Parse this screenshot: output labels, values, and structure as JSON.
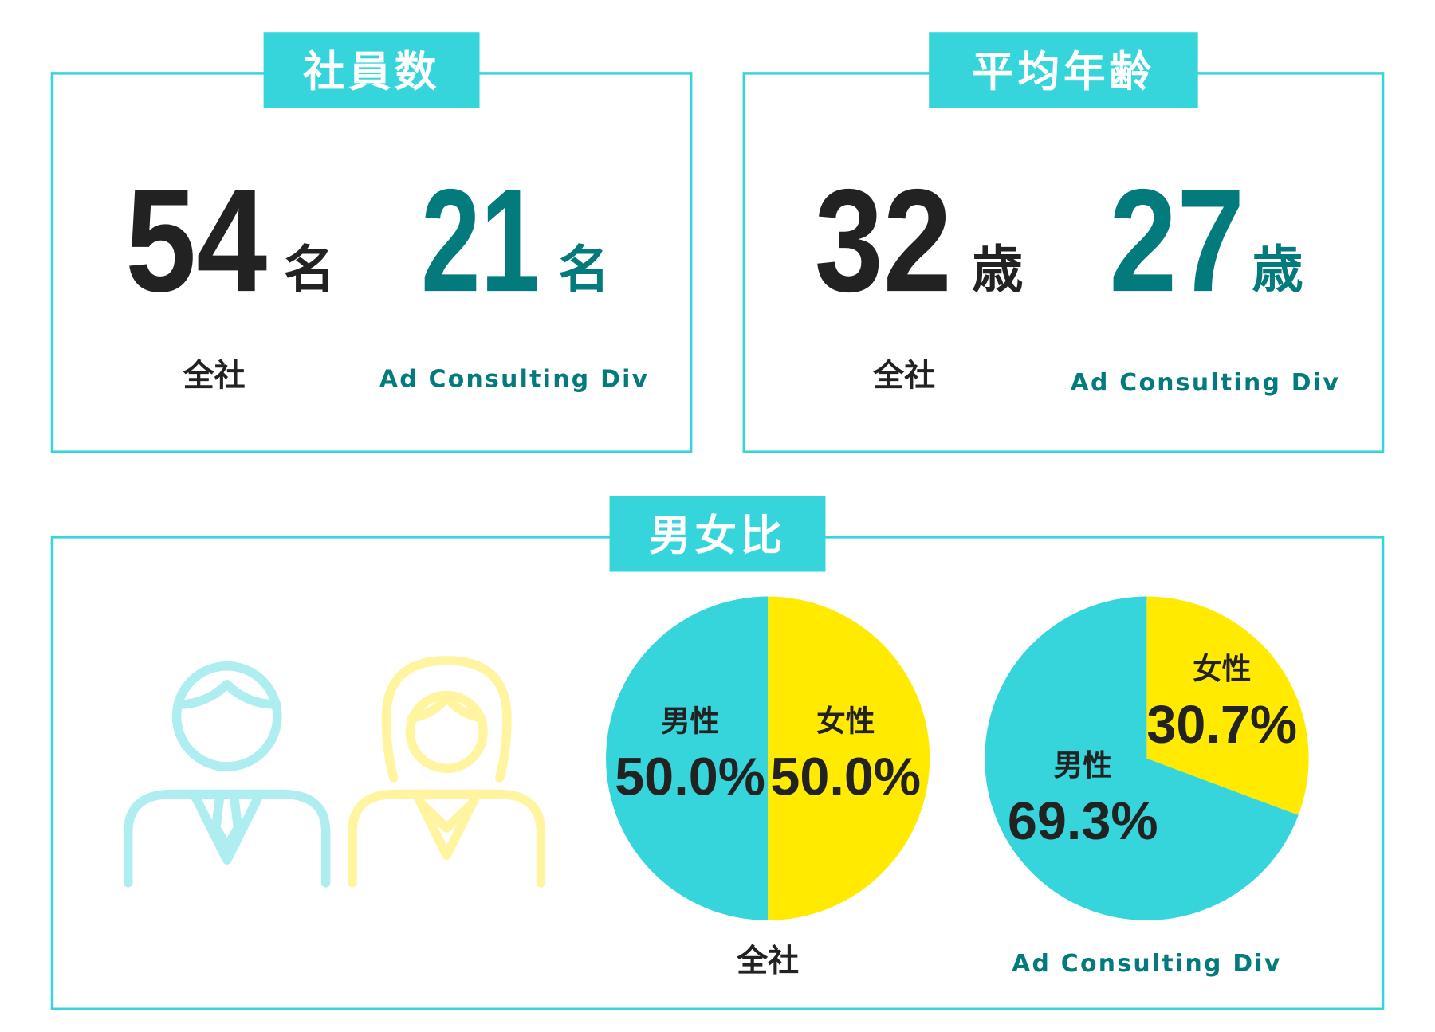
{
  "sections": [
    {
      "title": "社員数",
      "stats": [
        {
          "value": 54,
          "unit": "名",
          "label": "全社"
        },
        {
          "value": 21,
          "unit": "名",
          "label": "Ad Consulting Div"
        }
      ]
    },
    {
      "title": "平均年齢",
      "stats": [
        {
          "value": 32,
          "unit": "歳",
          "label": "全社"
        },
        {
          "value": 27,
          "unit": "歳",
          "label": "Ad Consulting Div"
        }
      ]
    }
  ],
  "gender": {
    "title": "男女比",
    "pies": [
      {
        "type": "pie",
        "caption": "全社",
        "slices": [
          {
            "name": "女性",
            "color": "#ffea00",
            "value": 50.0,
            "value_label": "50.0%"
          },
          {
            "name": "男性",
            "color": "#36d5db",
            "value": 50.0,
            "value_label": "50.0%"
          }
        ]
      },
      {
        "type": "pie",
        "caption": "Ad Consulting Div",
        "slices": [
          {
            "name": "女性",
            "color": "#ffea00",
            "value": 30.7,
            "value_label": "30.7%"
          },
          {
            "name": "男性",
            "color": "#36d5db",
            "value": 69.3,
            "value_label": "69.3%"
          }
        ]
      }
    ]
  }
}
